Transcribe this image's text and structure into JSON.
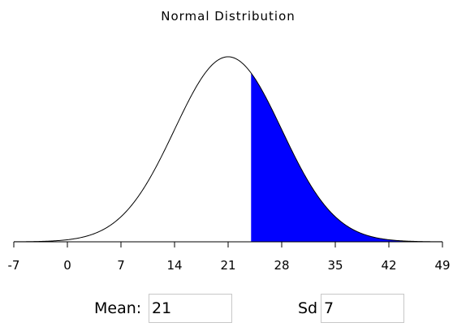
{
  "title": "Normal Distribution",
  "controls": {
    "mean_label": "Mean:",
    "mean_value": "21",
    "sd_label": "Sd",
    "sd_value": "7"
  },
  "chart_data": {
    "type": "area",
    "title": "Normal Distribution",
    "distribution": "normal",
    "mean": 21,
    "sd": 7,
    "shaded_region": {
      "from": 24,
      "to": 49,
      "color": "#0000ff"
    },
    "x_ticks": [
      -7,
      0,
      7,
      14,
      21,
      28,
      35,
      42,
      49
    ],
    "xlim": [
      -7,
      49
    ],
    "grid": false
  }
}
